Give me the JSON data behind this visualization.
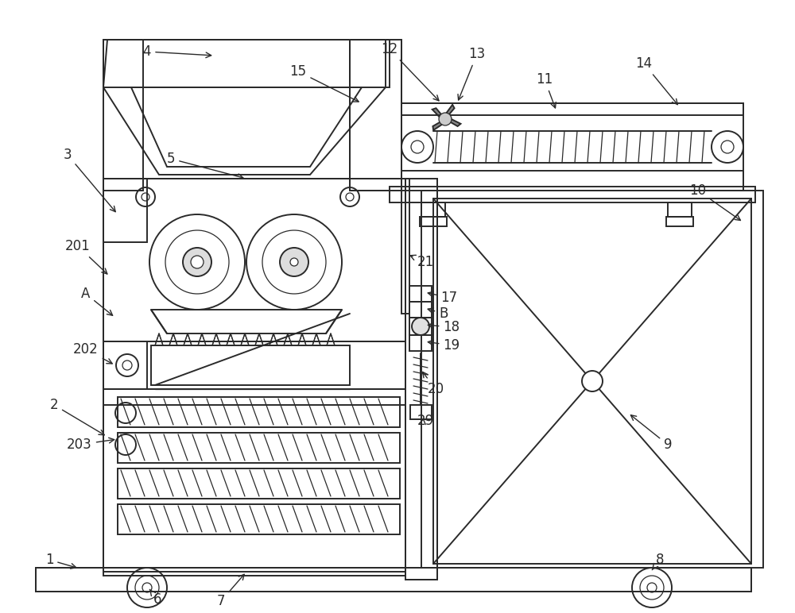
{
  "bg_color": "#ffffff",
  "lc": "#2a2a2a",
  "lw": 1.4,
  "lw2": 0.9,
  "figsize": [
    10.0,
    7.72
  ]
}
